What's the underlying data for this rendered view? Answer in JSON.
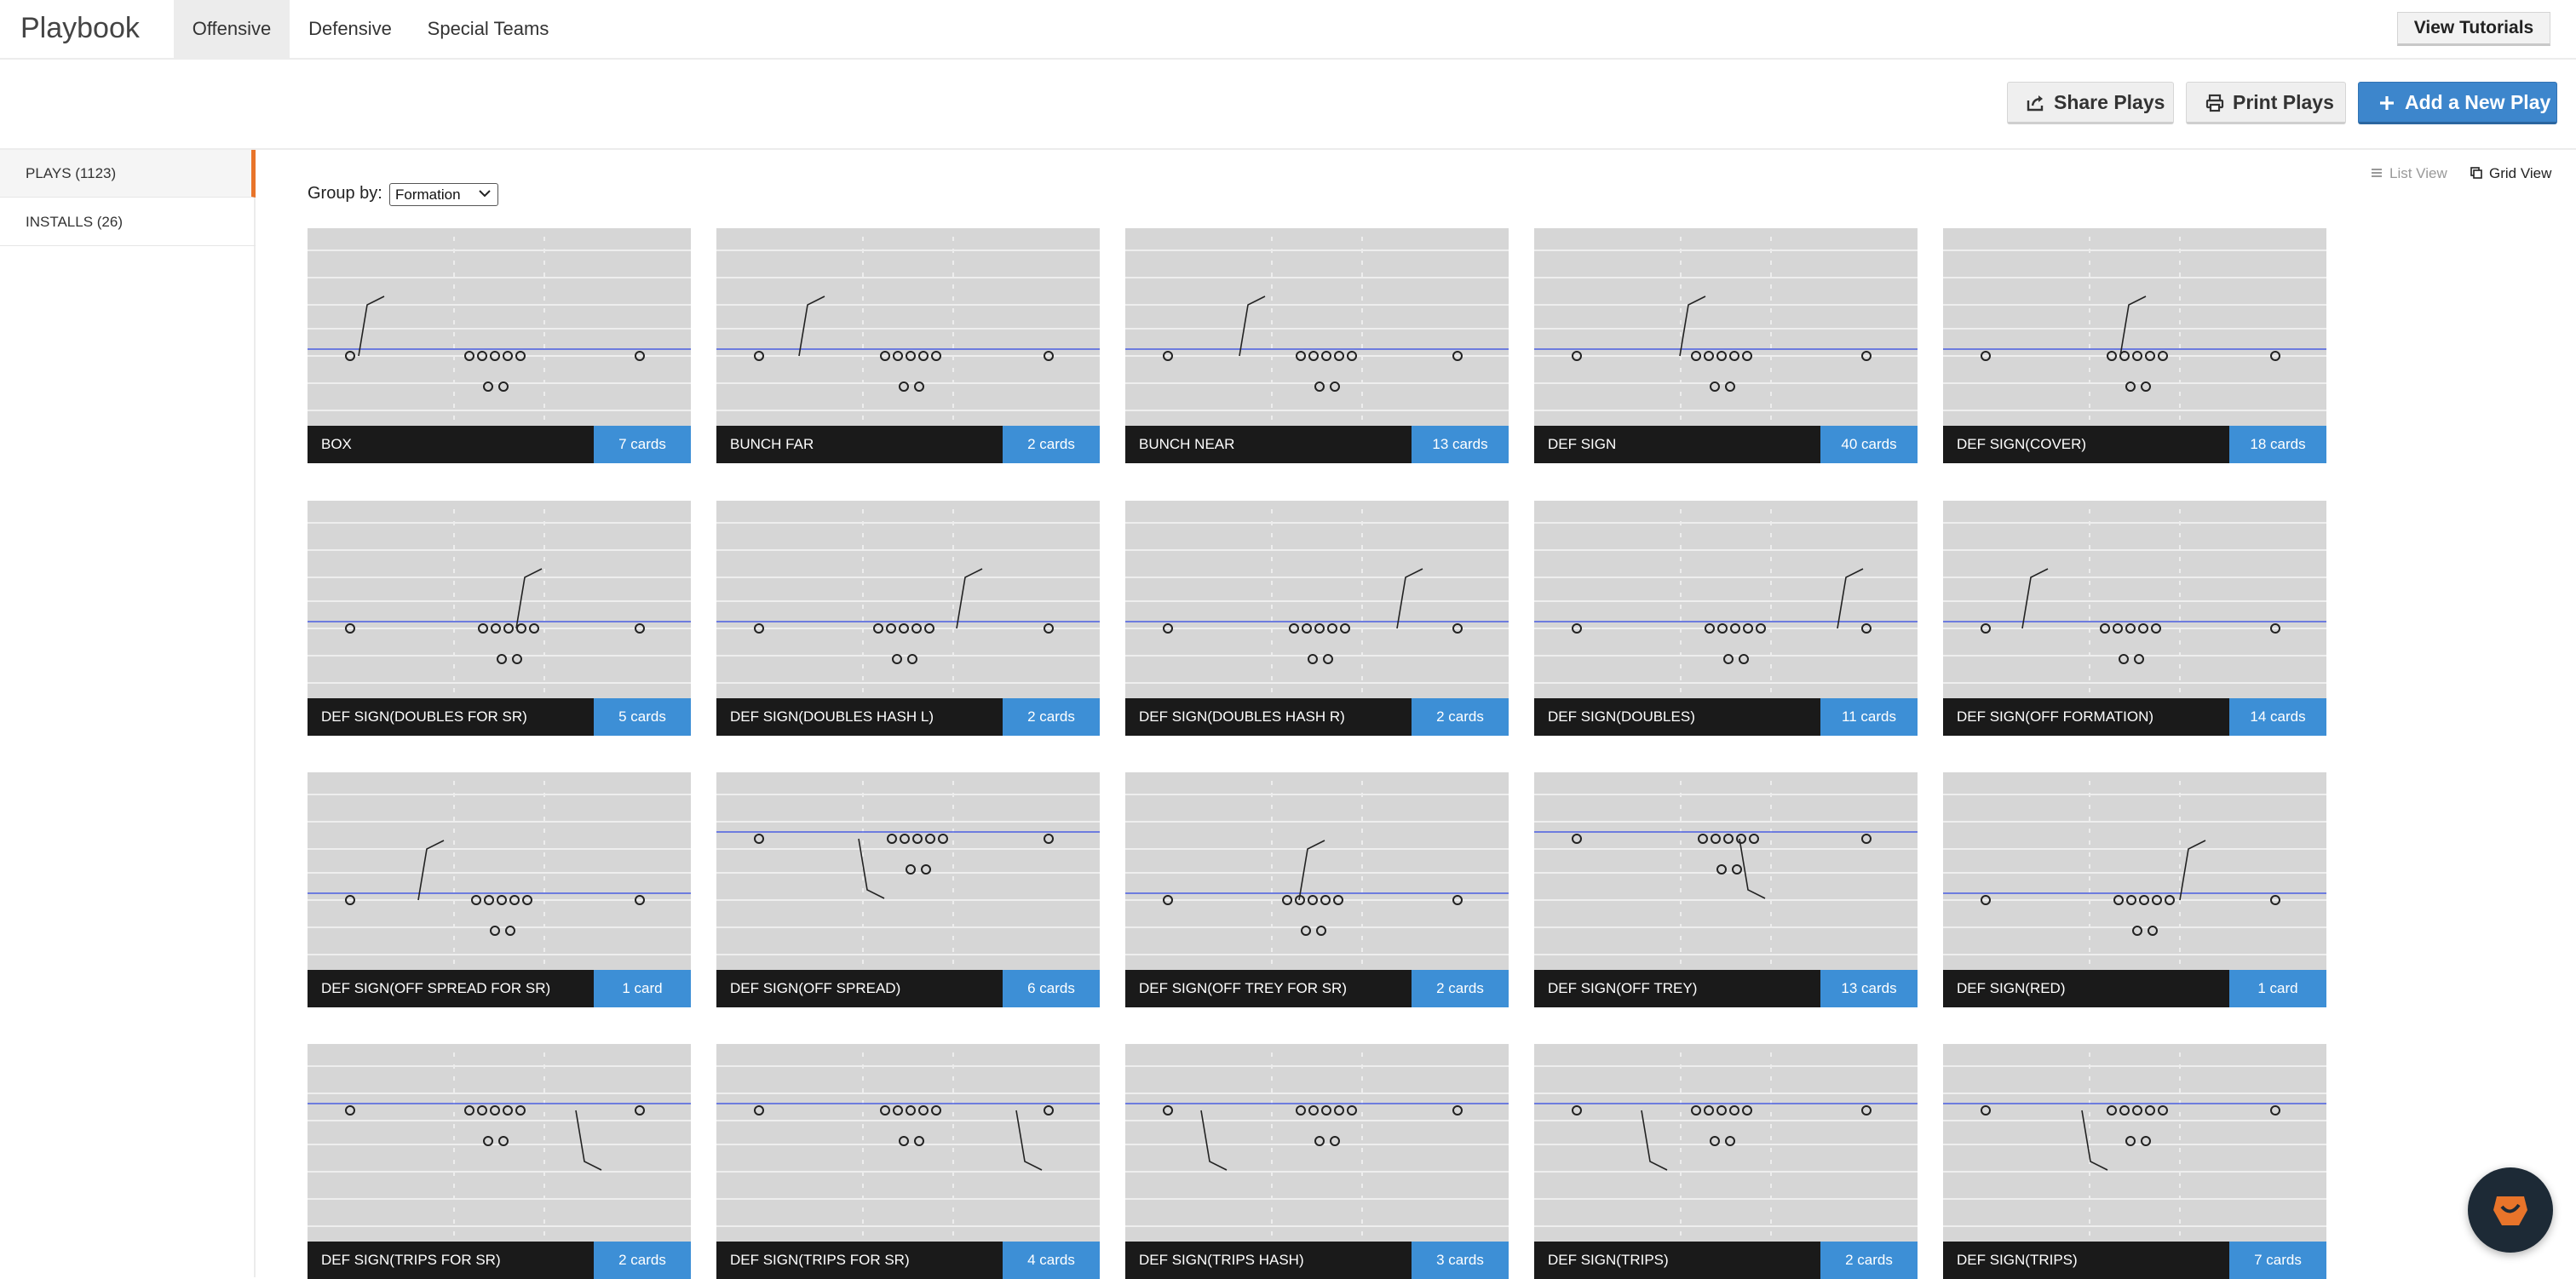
{
  "app": {
    "title": "Playbook",
    "tabs": [
      {
        "label": "Offensive",
        "active": true
      },
      {
        "label": "Defensive",
        "active": false
      },
      {
        "label": "Special Teams",
        "active": false
      }
    ],
    "view_tutorials": "View Tutorials"
  },
  "toolbar": {
    "share": "Share Plays",
    "print": "Print Plays",
    "add": "Add a New Play"
  },
  "sidebar": {
    "items": [
      {
        "label": "PLAYS (1123)",
        "active": true
      },
      {
        "label": "INSTALLS (26)",
        "active": false
      }
    ]
  },
  "main": {
    "group_by_label": "Group by:",
    "group_by_value": "Formation",
    "list_view": "List View",
    "grid_view": "Grid View",
    "cards": [
      {
        "name": "BOX",
        "count": "7 cards"
      },
      {
        "name": "BUNCH FAR",
        "count": "2 cards"
      },
      {
        "name": "BUNCH NEAR",
        "count": "13 cards"
      },
      {
        "name": "DEF SIGN",
        "count": "40 cards"
      },
      {
        "name": "DEF SIGN(COVER)",
        "count": "18 cards"
      },
      {
        "name": "DEF SIGN(DOUBLES FOR SR)",
        "count": "5 cards"
      },
      {
        "name": "DEF SIGN(DOUBLES HASH L)",
        "count": "2 cards"
      },
      {
        "name": "DEF SIGN(DOUBLES HASH R)",
        "count": "2 cards"
      },
      {
        "name": "DEF SIGN(DOUBLES)",
        "count": "11 cards"
      },
      {
        "name": "DEF SIGN(OFF FORMATION)",
        "count": "14 cards"
      },
      {
        "name": "DEF SIGN(OFF SPREAD FOR SR)",
        "count": "1 card"
      },
      {
        "name": "DEF SIGN(OFF SPREAD)",
        "count": "6 cards"
      },
      {
        "name": "DEF SIGN(OFF TREY FOR SR)",
        "count": "2 cards"
      },
      {
        "name": "DEF SIGN(OFF TREY)",
        "count": "13 cards"
      },
      {
        "name": "DEF SIGN(RED)",
        "count": "1 card"
      },
      {
        "name": "DEF SIGN(TRIPS FOR SR)",
        "count": "2 cards"
      },
      {
        "name": "DEF SIGN(TRIPS FOR SR)",
        "count": "4 cards"
      },
      {
        "name": "DEF SIGN(TRIPS HASH)",
        "count": "3 cards"
      },
      {
        "name": "DEF SIGN(TRIPS)",
        "count": "2 cards"
      },
      {
        "name": "DEF SIGN(TRIPS)",
        "count": "7 cards"
      }
    ]
  },
  "icons": {
    "share": "share-icon",
    "print": "printer-icon",
    "add": "plus-icon",
    "list": "list-icon",
    "grid": "grid-icon",
    "chat": "chat-icon"
  },
  "colors": {
    "accent_orange": "#e8742a",
    "count_blue": "#3d8fd6",
    "button_blue": "#3d86cc",
    "field_grey": "#d6d6d6",
    "card_label": "#1a1a1a"
  }
}
